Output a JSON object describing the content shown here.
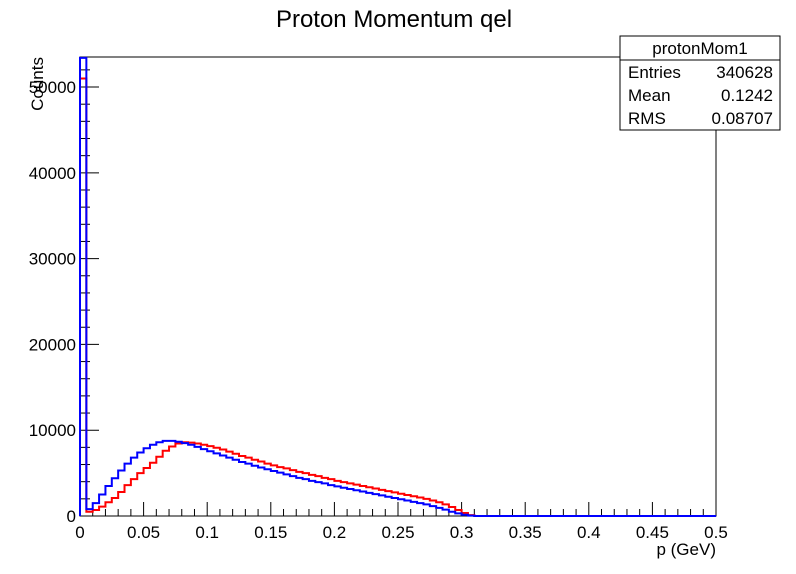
{
  "chart_data": {
    "type": "histogram-step",
    "title": "Proton Momentum qel",
    "xlabel": "p (GeV)",
    "ylabel": "Counts",
    "xlim": [
      0,
      0.5
    ],
    "ylim": [
      0,
      53500
    ],
    "bin_width": 0.005,
    "x_major_ticks": [
      0,
      0.05,
      0.1,
      0.15,
      0.2,
      0.25,
      0.3,
      0.35,
      0.4,
      0.45,
      0.5
    ],
    "x_tick_labels": [
      "0",
      "0.05",
      "0.1",
      "0.15",
      "0.2",
      "0.25",
      "0.3",
      "0.35",
      "0.4",
      "0.45",
      "0.5"
    ],
    "y_major_ticks": [
      0,
      10000,
      20000,
      30000,
      40000,
      50000
    ],
    "y_tick_labels": [
      "0",
      "10000",
      "20000",
      "30000",
      "40000",
      "50000"
    ],
    "grid": false,
    "stats_box": {
      "name": "protonMom1",
      "rows": [
        {
          "label": "Entries",
          "value": "340628"
        },
        {
          "label": "Mean",
          "value": "0.1242"
        },
        {
          "label": "RMS",
          "value": "0.08707"
        }
      ]
    },
    "series": [
      {
        "color": "#ff0000",
        "values": [
          51000,
          500,
          700,
          1100,
          1600,
          2100,
          2800,
          3600,
          4300,
          5000,
          5600,
          6200,
          6900,
          7600,
          8100,
          8450,
          8600,
          8550,
          8450,
          8300,
          8150,
          7950,
          7750,
          7500,
          7250,
          7000,
          6800,
          6550,
          6350,
          6100,
          5900,
          5700,
          5550,
          5350,
          5150,
          5000,
          4800,
          4650,
          4450,
          4300,
          4100,
          3950,
          3800,
          3650,
          3500,
          3350,
          3200,
          3050,
          2900,
          2750,
          2600,
          2450,
          2300,
          2150,
          2000,
          1800,
          1600,
          1350,
          1050,
          700,
          350,
          100,
          0,
          0,
          0,
          0,
          0,
          0,
          0,
          0,
          0,
          0,
          0,
          0,
          0,
          0,
          0,
          0,
          0,
          0,
          0,
          0,
          0,
          0,
          0,
          0,
          0,
          0,
          0,
          0,
          0,
          0,
          0,
          0,
          0,
          0,
          0,
          0,
          0,
          0
        ]
      },
      {
        "color": "#0000ff",
        "values": [
          53400,
          800,
          1500,
          2500,
          3500,
          4400,
          5300,
          6100,
          6800,
          7400,
          7900,
          8300,
          8600,
          8750,
          8750,
          8650,
          8500,
          8300,
          8050,
          7800,
          7550,
          7300,
          7050,
          6800,
          6550,
          6300,
          6100,
          5850,
          5650,
          5450,
          5250,
          5050,
          4850,
          4650,
          4450,
          4300,
          4100,
          3950,
          3800,
          3600,
          3450,
          3300,
          3150,
          3000,
          2850,
          2700,
          2550,
          2400,
          2250,
          2100,
          1950,
          1800,
          1650,
          1500,
          1350,
          1150,
          950,
          750,
          500,
          300,
          150,
          50,
          0,
          0,
          0,
          0,
          0,
          0,
          0,
          0,
          0,
          0,
          0,
          0,
          0,
          0,
          0,
          0,
          0,
          0,
          0,
          0,
          0,
          0,
          0,
          0,
          0,
          0,
          0,
          0,
          0,
          0,
          0,
          0,
          0,
          0,
          0,
          0,
          0,
          0
        ]
      }
    ]
  }
}
